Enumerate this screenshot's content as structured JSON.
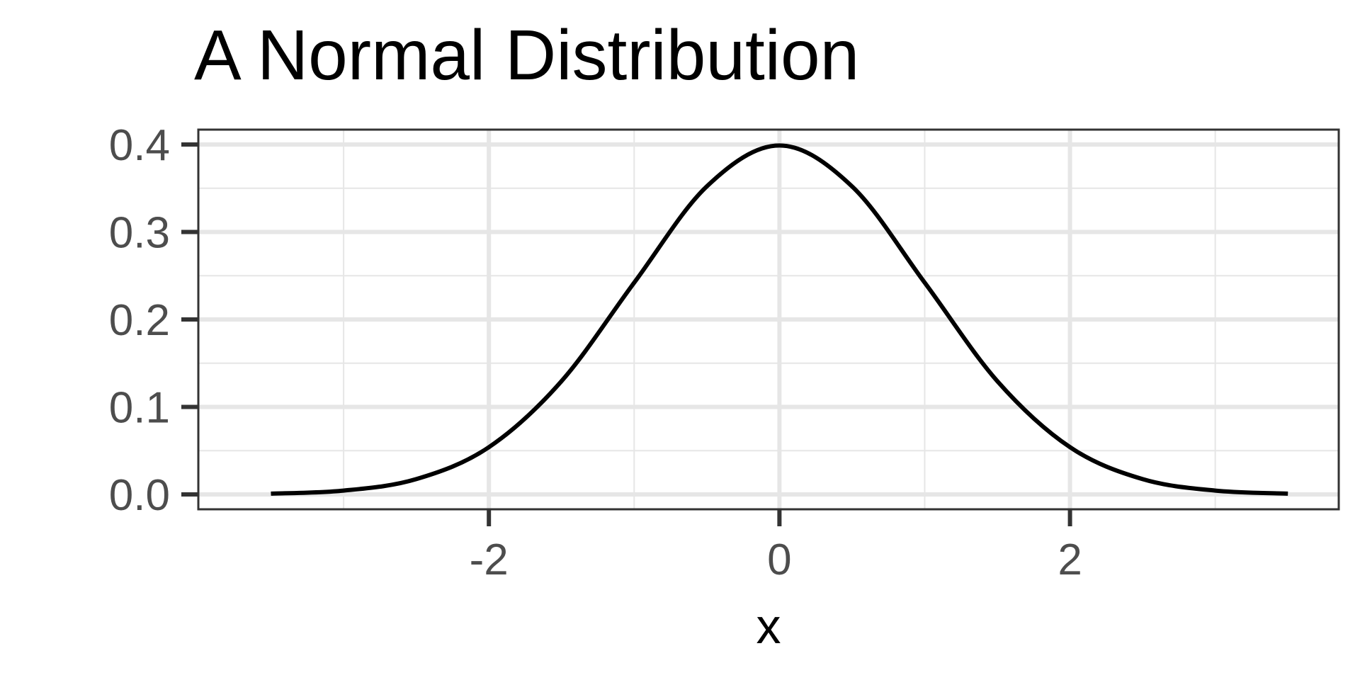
{
  "chart_data": {
    "type": "line",
    "title": "A Normal Distribution",
    "xlabel": "x",
    "ylabel": "",
    "xlim": [
      -4.0,
      3.85
    ],
    "ylim": [
      -0.017,
      0.417
    ],
    "x_ticks": [
      -2,
      0,
      2
    ],
    "x_tick_labels": [
      "-2",
      "0",
      "2"
    ],
    "y_ticks": [
      0.0,
      0.1,
      0.2,
      0.3,
      0.4
    ],
    "y_tick_labels": [
      "0.0",
      "0.1",
      "0.2",
      "0.3",
      "0.4"
    ],
    "grid": true,
    "legend": "none",
    "series": [
      {
        "x": [
          -3.5,
          -3.0,
          -2.5,
          -2.0,
          -1.5,
          -1.0,
          -0.5,
          0.0,
          0.5,
          1.0,
          1.5,
          2.0,
          2.5,
          3.0,
          3.5
        ],
        "values": [
          0.0009,
          0.0044,
          0.0175,
          0.054,
          0.1295,
          0.242,
          0.3521,
          0.3989,
          0.3521,
          0.242,
          0.1295,
          0.054,
          0.0175,
          0.0044,
          0.0009
        ]
      }
    ],
    "colors": {
      "background": "#ffffff",
      "grid": "#e6e6e6",
      "line": "#000000",
      "panel_border": "#333333",
      "ticks": "#333333",
      "tick_text": "#4d4d4d"
    }
  }
}
